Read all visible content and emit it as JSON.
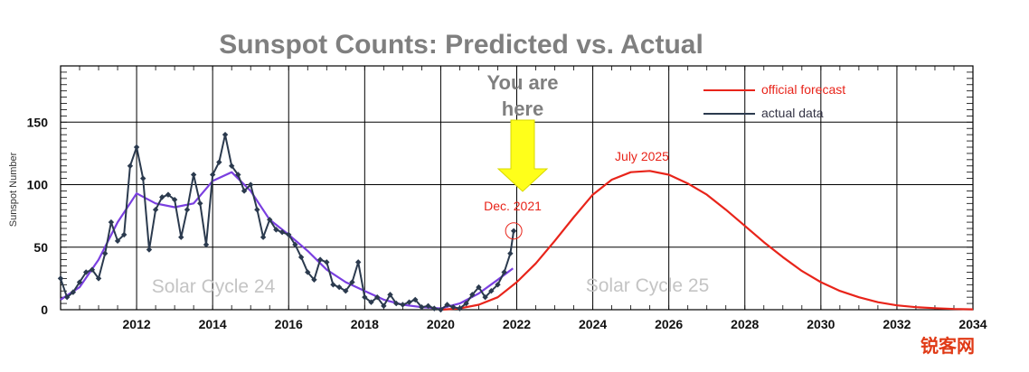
{
  "chart_data": {
    "type": "line",
    "title": "Sunspot Counts: Predicted vs. Actual",
    "ylabel": "Sunspot Number",
    "xlabel": "",
    "xlim": [
      2010,
      2034
    ],
    "ylim": [
      0,
      195
    ],
    "x_ticks": [
      "2012",
      "2014",
      "2016",
      "2018",
      "2020",
      "2022",
      "2024",
      "2026",
      "2028",
      "2030",
      "2032",
      "2034"
    ],
    "y_ticks": [
      "0",
      "50",
      "100",
      "150"
    ],
    "grid": true,
    "legend_position": "top-right",
    "series": [
      {
        "name": "actual data",
        "color": "#2b3a4e",
        "x": [
          2010.0,
          2010.17,
          2010.33,
          2010.5,
          2010.67,
          2010.83,
          2011.0,
          2011.17,
          2011.33,
          2011.5,
          2011.67,
          2011.83,
          2012.0,
          2012.17,
          2012.33,
          2012.5,
          2012.67,
          2012.83,
          2013.0,
          2013.17,
          2013.33,
          2013.5,
          2013.67,
          2013.83,
          2014.0,
          2014.17,
          2014.33,
          2014.5,
          2014.67,
          2014.83,
          2015.0,
          2015.17,
          2015.33,
          2015.5,
          2015.67,
          2015.83,
          2016.0,
          2016.17,
          2016.33,
          2016.5,
          2016.67,
          2016.83,
          2017.0,
          2017.17,
          2017.33,
          2017.5,
          2017.67,
          2017.83,
          2018.0,
          2018.17,
          2018.33,
          2018.5,
          2018.67,
          2018.83,
          2019.0,
          2019.17,
          2019.33,
          2019.5,
          2019.67,
          2019.83,
          2020.0,
          2020.17,
          2020.33,
          2020.5,
          2020.67,
          2020.83,
          2021.0,
          2021.17,
          2021.33,
          2021.5,
          2021.67,
          2021.83,
          2021.92
        ],
        "y": [
          25,
          10,
          14,
          22,
          30,
          32,
          25,
          45,
          70,
          55,
          60,
          115,
          130,
          105,
          48,
          80,
          90,
          92,
          88,
          58,
          80,
          108,
          85,
          52,
          108,
          118,
          140,
          115,
          108,
          95,
          100,
          80,
          58,
          72,
          64,
          62,
          60,
          52,
          42,
          30,
          24,
          40,
          38,
          20,
          18,
          15,
          22,
          38,
          10,
          6,
          10,
          3,
          12,
          5,
          4,
          6,
          8,
          2,
          3,
          1,
          0,
          4,
          2,
          1,
          5,
          12,
          18,
          10,
          15,
          20,
          30,
          45,
          63
        ]
      },
      {
        "name": "",
        "color": "#7a3fe0",
        "x": [
          2010.0,
          2010.5,
          2011.0,
          2011.5,
          2012.0,
          2012.5,
          2013.0,
          2013.5,
          2014.0,
          2014.5,
          2015.0,
          2015.5,
          2016.0,
          2016.5,
          2017.0,
          2017.5,
          2018.0,
          2018.5,
          2019.0,
          2019.5,
          2020.0,
          2020.5,
          2021.0,
          2021.5,
          2021.9
        ],
        "y": [
          8,
          18,
          40,
          70,
          93,
          85,
          82,
          85,
          103,
          110,
          95,
          72,
          60,
          47,
          32,
          22,
          15,
          8,
          4,
          2,
          1,
          5,
          13,
          24,
          33
        ]
      },
      {
        "name": "official forecast",
        "color": "#e8241a",
        "x": [
          2020.0,
          2020.5,
          2021.0,
          2021.5,
          2022.0,
          2022.5,
          2023.0,
          2023.5,
          2024.0,
          2024.5,
          2025.0,
          2025.5,
          2026.0,
          2026.5,
          2027.0,
          2027.5,
          2028.0,
          2028.5,
          2029.0,
          2029.5,
          2030.0,
          2030.5,
          2031.0,
          2031.5,
          2032.0,
          2032.5,
          2033.0,
          2033.5,
          2034.0
        ],
        "y": [
          0,
          1,
          4,
          10,
          22,
          37,
          55,
          74,
          92,
          104,
          110,
          111,
          108,
          101,
          92,
          80,
          67,
          54,
          42,
          31,
          22,
          15,
          10,
          6,
          3.5,
          2,
          1.2,
          0.6,
          0.3
        ]
      }
    ],
    "annotations": {
      "you_are_here_line1": "You are",
      "you_are_here_line2": "here",
      "dec_2021": "Dec. 2021",
      "july_2025": "July 2025",
      "cycle24": "Solar Cycle 24",
      "cycle25": "Solar Cycle 25"
    },
    "watermark": "锐客网"
  }
}
